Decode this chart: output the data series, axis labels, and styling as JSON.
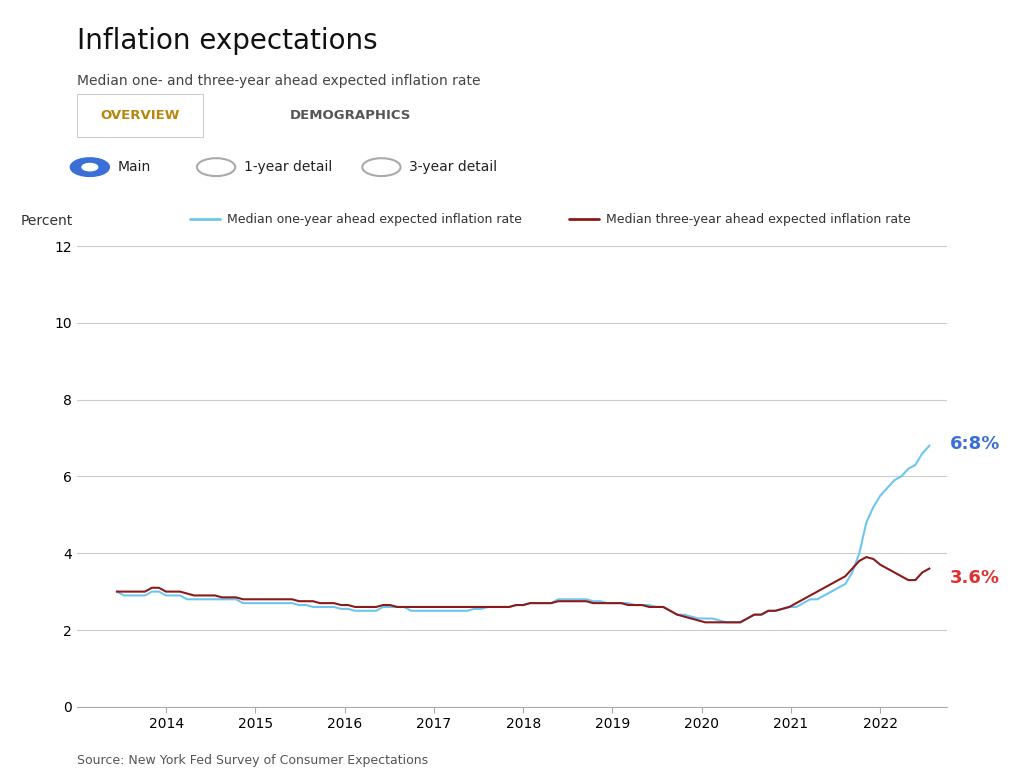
{
  "title": "Inflation expectations",
  "subtitle": "Median one- and three-year ahead expected inflation rate",
  "source": "Source: New York Fed Survey of Consumer Expectations",
  "ylabel": "Percent",
  "legend_1yr": "Median one-year ahead expected inflation rate",
  "legend_3yr": "Median three-year ahead expected inflation rate",
  "color_1yr": "#6EC6F0",
  "color_3yr": "#8B1A1A",
  "label_1yr": "6:8%",
  "label_3yr": "3.6%",
  "label_1yr_color": "#3A6FD8",
  "label_3yr_color": "#E03030",
  "ylim": [
    0,
    12
  ],
  "yticks": [
    0,
    2,
    4,
    6,
    8,
    10,
    12
  ],
  "tab_overview": "OVERVIEW",
  "tab_demographics": "DEMOGRAPHICS",
  "tab_overview_color": "#B8860B",
  "radio_options": [
    "Main",
    "1-year detail",
    "3-year detail"
  ],
  "background_panel": "#E8E8E8",
  "background_chart": "#FFFFFF",
  "sidebar_color": "#2D6A2D",
  "one_year_data": [
    3.0,
    2.9,
    2.9,
    2.9,
    2.9,
    3.0,
    3.0,
    2.9,
    2.9,
    2.9,
    2.8,
    2.8,
    2.8,
    2.8,
    2.8,
    2.8,
    2.8,
    2.8,
    2.7,
    2.7,
    2.7,
    2.7,
    2.7,
    2.7,
    2.7,
    2.7,
    2.65,
    2.65,
    2.6,
    2.6,
    2.6,
    2.6,
    2.55,
    2.55,
    2.5,
    2.5,
    2.5,
    2.5,
    2.6,
    2.6,
    2.6,
    2.6,
    2.5,
    2.5,
    2.5,
    2.5,
    2.5,
    2.5,
    2.5,
    2.5,
    2.5,
    2.55,
    2.55,
    2.6,
    2.6,
    2.6,
    2.6,
    2.65,
    2.65,
    2.7,
    2.7,
    2.7,
    2.7,
    2.8,
    2.8,
    2.8,
    2.8,
    2.8,
    2.75,
    2.75,
    2.7,
    2.7,
    2.7,
    2.7,
    2.65,
    2.65,
    2.65,
    2.6,
    2.6,
    2.5,
    2.4,
    2.4,
    2.35,
    2.3,
    2.3,
    2.3,
    2.25,
    2.2,
    2.2,
    2.2,
    2.3,
    2.4,
    2.4,
    2.5,
    2.5,
    2.55,
    2.6,
    2.6,
    2.7,
    2.8,
    2.8,
    2.9,
    3.0,
    3.1,
    3.2,
    3.5,
    4.0,
    4.8,
    5.2,
    5.5,
    5.7,
    5.9,
    6.0,
    6.2,
    6.3,
    6.6,
    6.8
  ],
  "three_year_data": [
    3.0,
    3.0,
    3.0,
    3.0,
    3.0,
    3.1,
    3.1,
    3.0,
    3.0,
    3.0,
    2.95,
    2.9,
    2.9,
    2.9,
    2.9,
    2.85,
    2.85,
    2.85,
    2.8,
    2.8,
    2.8,
    2.8,
    2.8,
    2.8,
    2.8,
    2.8,
    2.75,
    2.75,
    2.75,
    2.7,
    2.7,
    2.7,
    2.65,
    2.65,
    2.6,
    2.6,
    2.6,
    2.6,
    2.65,
    2.65,
    2.6,
    2.6,
    2.6,
    2.6,
    2.6,
    2.6,
    2.6,
    2.6,
    2.6,
    2.6,
    2.6,
    2.6,
    2.6,
    2.6,
    2.6,
    2.6,
    2.6,
    2.65,
    2.65,
    2.7,
    2.7,
    2.7,
    2.7,
    2.75,
    2.75,
    2.75,
    2.75,
    2.75,
    2.7,
    2.7,
    2.7,
    2.7,
    2.7,
    2.65,
    2.65,
    2.65,
    2.6,
    2.6,
    2.6,
    2.5,
    2.4,
    2.35,
    2.3,
    2.25,
    2.2,
    2.2,
    2.2,
    2.2,
    2.2,
    2.2,
    2.3,
    2.4,
    2.4,
    2.5,
    2.5,
    2.55,
    2.6,
    2.7,
    2.8,
    2.9,
    3.0,
    3.1,
    3.2,
    3.3,
    3.4,
    3.6,
    3.8,
    3.9,
    3.85,
    3.7,
    3.6,
    3.5,
    3.4,
    3.3,
    3.3,
    3.5,
    3.6
  ]
}
